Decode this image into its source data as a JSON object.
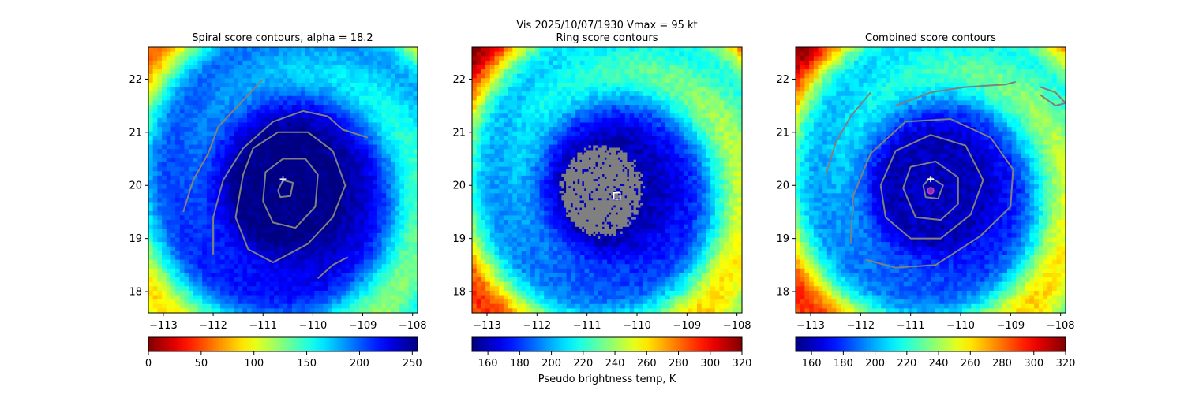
{
  "figure": {
    "suptitle": "Vis  2025/10/07/1930    Vmax = 95 kt",
    "colorbar_label": "Pseudo brightness temp, K",
    "colors": {
      "contour": "#808080",
      "background": "#ffffff",
      "mask_gray": "#808080"
    }
  },
  "chart_data": [
    {
      "type": "heatmap",
      "title": "Spiral score contours, alpha = 18.2",
      "colormap": "jet_r",
      "xlim": [
        -113.3,
        -107.9
      ],
      "ylim": [
        17.6,
        22.6
      ],
      "xticks": [
        -113,
        -112,
        -111,
        -110,
        -109,
        -108
      ],
      "xtick_labels": [
        "−113",
        "−112",
        "−111",
        "−110",
        "−109",
        "−108"
      ],
      "yticks": [
        18,
        19,
        20,
        21,
        22
      ],
      "ytick_labels": [
        "18",
        "19",
        "20",
        "21",
        "22"
      ],
      "colorbar": {
        "range": [
          0,
          255
        ],
        "ticks": [
          0,
          50,
          100,
          150,
          200,
          250
        ],
        "tick_labels": [
          "0",
          "50",
          "100",
          "150",
          "200",
          "250"
        ]
      },
      "field_center_K": 255,
      "storm_center": [
        -110.5,
        19.9
      ],
      "markers": [
        {
          "kind": "plus",
          "lon": -110.6,
          "lat": 20.12,
          "color": "#ffffff"
        }
      ],
      "contours": [
        {
          "name": "outer-arc-west",
          "points": [
            [
              -112.6,
              19.5
            ],
            [
              -112.4,
              20.1
            ],
            [
              -112.1,
              20.6
            ],
            [
              -111.9,
              21.1
            ],
            [
              -111.4,
              21.6
            ],
            [
              -111.0,
              22.0
            ]
          ]
        },
        {
          "name": "ring-1",
          "points": [
            [
              -112.0,
              18.7
            ],
            [
              -112.0,
              19.4
            ],
            [
              -111.8,
              20.1
            ],
            [
              -111.4,
              20.7
            ],
            [
              -110.8,
              21.2
            ],
            [
              -110.2,
              21.4
            ],
            [
              -109.7,
              21.3
            ],
            [
              -109.4,
              21.05
            ],
            [
              -108.9,
              20.9
            ]
          ]
        },
        {
          "name": "ring-2",
          "points": [
            [
              -111.4,
              20.2
            ],
            [
              -111.2,
              20.7
            ],
            [
              -110.7,
              21.0
            ],
            [
              -110.1,
              21.0
            ],
            [
              -109.6,
              20.65
            ],
            [
              -109.35,
              20.0
            ],
            [
              -109.6,
              19.4
            ],
            [
              -110.1,
              18.9
            ],
            [
              -110.8,
              18.55
            ],
            [
              -111.3,
              18.8
            ],
            [
              -111.55,
              19.4
            ],
            [
              -111.4,
              20.2
            ]
          ]
        },
        {
          "name": "ring-3",
          "points": [
            [
              -111.0,
              19.7
            ],
            [
              -110.95,
              20.25
            ],
            [
              -110.6,
              20.5
            ],
            [
              -110.15,
              20.5
            ],
            [
              -109.9,
              20.2
            ],
            [
              -109.95,
              19.6
            ],
            [
              -110.35,
              19.2
            ],
            [
              -110.8,
              19.3
            ],
            [
              -111.0,
              19.7
            ]
          ]
        },
        {
          "name": "ring-4",
          "points": [
            [
              -110.7,
              19.9
            ],
            [
              -110.6,
              20.1
            ],
            [
              -110.4,
              20.05
            ],
            [
              -110.45,
              19.8
            ],
            [
              -110.65,
              19.78
            ],
            [
              -110.7,
              19.9
            ]
          ]
        },
        {
          "name": "arc-se",
          "points": [
            [
              -109.9,
              18.25
            ],
            [
              -109.6,
              18.5
            ],
            [
              -109.3,
              18.65
            ]
          ]
        }
      ]
    },
    {
      "type": "heatmap",
      "title": "Ring score contours",
      "colormap": "jet",
      "xlim": [
        -113.3,
        -107.9
      ],
      "ylim": [
        17.6,
        22.6
      ],
      "xticks": [
        -113,
        -112,
        -111,
        -110,
        -109,
        -108
      ],
      "xtick_labels": [
        "−113",
        "−112",
        "−111",
        "−110",
        "−109",
        "−108"
      ],
      "yticks": [
        18,
        19,
        20,
        21,
        22
      ],
      "ytick_labels": [
        "18",
        "19",
        "20",
        "21",
        "22"
      ],
      "colorbar": {
        "range": [
          150,
          320
        ],
        "ticks": [
          160,
          180,
          200,
          220,
          240,
          260,
          280,
          300,
          320
        ],
        "tick_labels": [
          "160",
          "180",
          "200",
          "220",
          "240",
          "260",
          "280",
          "300",
          "320"
        ]
      },
      "field_center_K": 160,
      "storm_center": [
        -110.5,
        19.9
      ],
      "gray_mask": {
        "center": [
          -110.7,
          19.9
        ],
        "radius_deg": 0.9
      },
      "markers": [
        {
          "kind": "square",
          "lon": -110.4,
          "lat": 19.8,
          "color": "#ffffff"
        }
      ],
      "contours": []
    },
    {
      "type": "heatmap",
      "title": "Combined score contours",
      "colormap": "jet",
      "xlim": [
        -113.3,
        -107.9
      ],
      "ylim": [
        17.6,
        22.6
      ],
      "xticks": [
        -113,
        -112,
        -111,
        -110,
        -109,
        -108
      ],
      "xtick_labels": [
        "−113",
        "−112",
        "−111",
        "−110",
        "−109",
        "−108"
      ],
      "yticks": [
        18,
        19,
        20,
        21,
        22
      ],
      "ytick_labels": [
        "18",
        "19",
        "20",
        "21",
        "22"
      ],
      "colorbar": {
        "range": [
          150,
          320
        ],
        "ticks": [
          160,
          180,
          200,
          220,
          240,
          260,
          280,
          300,
          320
        ],
        "tick_labels": [
          "160",
          "180",
          "200",
          "220",
          "240",
          "260",
          "280",
          "300",
          "320"
        ]
      },
      "field_center_K": 160,
      "storm_center": [
        -110.5,
        19.9
      ],
      "markers": [
        {
          "kind": "plus",
          "lon": -110.6,
          "lat": 20.12,
          "color": "#ffffff"
        },
        {
          "kind": "circle",
          "lon": -110.6,
          "lat": 19.9,
          "color": "#cc33cc"
        }
      ],
      "contours": [
        {
          "name": "outer-arc-west",
          "points": [
            [
              -112.7,
              20.2
            ],
            [
              -112.5,
              20.8
            ],
            [
              -112.2,
              21.3
            ],
            [
              -111.8,
              21.75
            ]
          ]
        },
        {
          "name": "outer-arc-north",
          "points": [
            [
              -111.3,
              21.5
            ],
            [
              -110.6,
              21.75
            ],
            [
              -109.9,
              21.85
            ],
            [
              -109.1,
              21.9
            ],
            [
              -108.9,
              21.95
            ]
          ]
        },
        {
          "name": "small-loop-ne",
          "points": [
            [
              -108.4,
              21.85
            ],
            [
              -108.1,
              21.75
            ],
            [
              -107.9,
              21.55
            ],
            [
              -108.1,
              21.5
            ],
            [
              -108.4,
              21.7
            ]
          ]
        },
        {
          "name": "ring-1",
          "points": [
            [
              -112.2,
              18.9
            ],
            [
              -112.15,
              19.8
            ],
            [
              -111.8,
              20.6
            ],
            [
              -111.1,
              21.2
            ],
            [
              -110.2,
              21.25
            ],
            [
              -109.4,
              20.9
            ],
            [
              -108.95,
              20.3
            ],
            [
              -109.0,
              19.6
            ],
            [
              -109.6,
              19.05
            ],
            [
              -110.5,
              18.5
            ],
            [
              -111.3,
              18.45
            ],
            [
              -111.9,
              18.6
            ]
          ]
        },
        {
          "name": "ring-2",
          "points": [
            [
              -111.6,
              20.0
            ],
            [
              -111.3,
              20.65
            ],
            [
              -110.6,
              20.95
            ],
            [
              -109.9,
              20.75
            ],
            [
              -109.55,
              20.1
            ],
            [
              -109.8,
              19.45
            ],
            [
              -110.4,
              19.0
            ],
            [
              -111.0,
              19.0
            ],
            [
              -111.5,
              19.4
            ],
            [
              -111.6,
              20.0
            ]
          ]
        },
        {
          "name": "ring-3",
          "points": [
            [
              -111.15,
              19.95
            ],
            [
              -111.0,
              20.35
            ],
            [
              -110.5,
              20.45
            ],
            [
              -110.05,
              20.15
            ],
            [
              -110.05,
              19.65
            ],
            [
              -110.4,
              19.35
            ],
            [
              -110.9,
              19.4
            ],
            [
              -111.15,
              19.95
            ]
          ]
        },
        {
          "name": "ring-4",
          "points": [
            [
              -110.75,
              20.0
            ],
            [
              -110.6,
              20.15
            ],
            [
              -110.35,
              20.0
            ],
            [
              -110.45,
              19.75
            ],
            [
              -110.7,
              19.78
            ],
            [
              -110.75,
              20.0
            ]
          ]
        }
      ]
    }
  ]
}
